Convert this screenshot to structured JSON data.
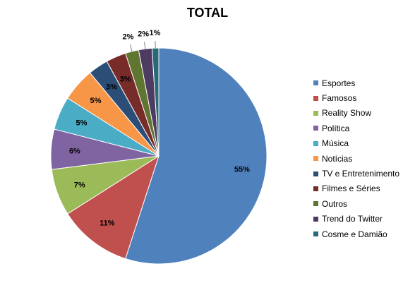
{
  "chart_data": {
    "type": "pie",
    "title": "TOTAL",
    "legend_position": "right",
    "slices": [
      {
        "label": "Esportes",
        "value": 55,
        "display": "55%",
        "color": "#4f81bd"
      },
      {
        "label": "Famosos",
        "value": 11,
        "display": "11%",
        "color": "#c0504d"
      },
      {
        "label": "Reality Show",
        "value": 7,
        "display": "7%",
        "color": "#9bbb59"
      },
      {
        "label": "Política",
        "value": 6,
        "display": "6%",
        "color": "#8064a2"
      },
      {
        "label": "Música",
        "value": 5,
        "display": "5%",
        "color": "#4bacc6"
      },
      {
        "label": "Notícias",
        "value": 5,
        "display": "5%",
        "color": "#f79646"
      },
      {
        "label": "TV e Entretenimento",
        "value": 3,
        "display": "3%",
        "color": "#2c4d75"
      },
      {
        "label": "Filmes e Séries",
        "value": 3,
        "display": "3%",
        "color": "#772c2a"
      },
      {
        "label": "Outros",
        "value": 2,
        "display": "2%",
        "color": "#5f7530"
      },
      {
        "label": "Trend do Twitter",
        "value": 2,
        "display": "2%",
        "color": "#4d3b62"
      },
      {
        "label": "Cosme e Damião",
        "value": 1,
        "display": "1%",
        "color": "#276a7c"
      }
    ]
  }
}
